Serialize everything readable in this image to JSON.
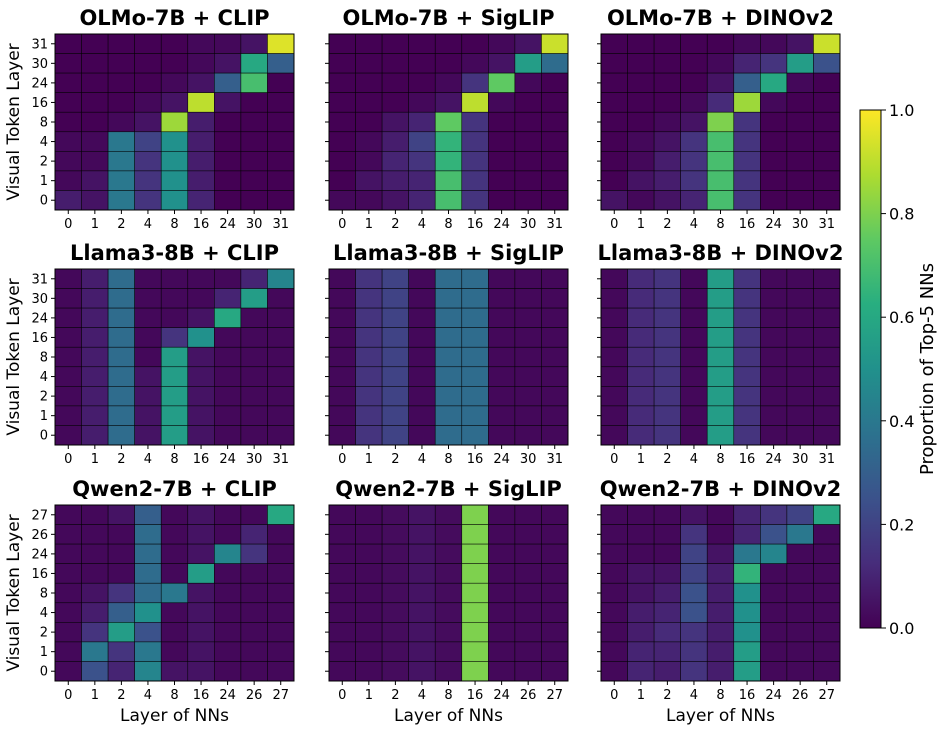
{
  "chart_data": [
    {
      "type": "heatmap",
      "title": "OLMo-7B + CLIP",
      "ylabel": "Visual Token Layer",
      "xlabel": "",
      "x_categories": [
        "0",
        "1",
        "2",
        "4",
        "8",
        "16",
        "24",
        "30",
        "31"
      ],
      "y_categories": [
        "31",
        "30",
        "24",
        "16",
        "8",
        "4",
        "2",
        "1",
        "0"
      ],
      "values": [
        [
          0.0,
          0.0,
          0.0,
          0.0,
          0.0,
          0.02,
          0.02,
          0.05,
          0.95
        ],
        [
          0.0,
          0.0,
          0.0,
          0.0,
          0.0,
          0.02,
          0.05,
          0.6,
          0.3
        ],
        [
          0.0,
          0.0,
          0.0,
          0.0,
          0.02,
          0.05,
          0.3,
          0.7,
          0.0
        ],
        [
          0.0,
          0.0,
          0.0,
          0.02,
          0.05,
          0.9,
          0.05,
          0.0,
          0.0
        ],
        [
          0.0,
          0.0,
          0.02,
          0.05,
          0.85,
          0.08,
          0.0,
          0.0,
          0.0
        ],
        [
          0.02,
          0.02,
          0.4,
          0.2,
          0.5,
          0.08,
          0.0,
          0.0,
          0.0
        ],
        [
          0.02,
          0.02,
          0.4,
          0.15,
          0.5,
          0.08,
          0.0,
          0.0,
          0.0
        ],
        [
          0.02,
          0.05,
          0.4,
          0.15,
          0.5,
          0.08,
          0.0,
          0.0,
          0.0
        ],
        [
          0.08,
          0.05,
          0.4,
          0.15,
          0.5,
          0.1,
          0.0,
          0.0,
          0.0
        ]
      ]
    },
    {
      "type": "heatmap",
      "title": "OLMo-7B + SigLIP",
      "ylabel": "",
      "xlabel": "",
      "x_categories": [
        "0",
        "1",
        "2",
        "4",
        "8",
        "16",
        "24",
        "30",
        "31"
      ],
      "y_categories": [
        "31",
        "30",
        "24",
        "16",
        "8",
        "4",
        "2",
        "1",
        "0"
      ],
      "values": [
        [
          0.0,
          0.0,
          0.0,
          0.0,
          0.0,
          0.0,
          0.02,
          0.05,
          0.92
        ],
        [
          0.0,
          0.0,
          0.0,
          0.0,
          0.0,
          0.02,
          0.05,
          0.55,
          0.35
        ],
        [
          0.0,
          0.0,
          0.0,
          0.0,
          0.02,
          0.15,
          0.75,
          0.02,
          0.0
        ],
        [
          0.0,
          0.0,
          0.0,
          0.02,
          0.05,
          0.9,
          0.02,
          0.0,
          0.0
        ],
        [
          0.0,
          0.0,
          0.05,
          0.1,
          0.75,
          0.15,
          0.0,
          0.0,
          0.0
        ],
        [
          0.0,
          0.02,
          0.08,
          0.2,
          0.65,
          0.15,
          0.0,
          0.0,
          0.0
        ],
        [
          0.0,
          0.02,
          0.1,
          0.15,
          0.65,
          0.15,
          0.0,
          0.0,
          0.0
        ],
        [
          0.0,
          0.05,
          0.08,
          0.1,
          0.7,
          0.15,
          0.0,
          0.0,
          0.0
        ],
        [
          0.02,
          0.02,
          0.05,
          0.1,
          0.7,
          0.15,
          0.0,
          0.0,
          0.0
        ]
      ]
    },
    {
      "type": "heatmap",
      "title": "OLMo-7B + DINOv2",
      "ylabel": "",
      "xlabel": "",
      "x_categories": [
        "0",
        "1",
        "2",
        "4",
        "8",
        "16",
        "24",
        "30",
        "31"
      ],
      "y_categories": [
        "31",
        "30",
        "24",
        "16",
        "8",
        "4",
        "2",
        "1",
        "0"
      ],
      "values": [
        [
          0.0,
          0.0,
          0.0,
          0.0,
          0.0,
          0.02,
          0.02,
          0.05,
          0.92
        ],
        [
          0.0,
          0.0,
          0.0,
          0.0,
          0.02,
          0.1,
          0.15,
          0.55,
          0.25
        ],
        [
          0.0,
          0.0,
          0.0,
          0.0,
          0.05,
          0.3,
          0.6,
          0.02,
          0.0
        ],
        [
          0.0,
          0.0,
          0.0,
          0.02,
          0.12,
          0.85,
          0.02,
          0.0,
          0.0
        ],
        [
          0.0,
          0.0,
          0.02,
          0.05,
          0.8,
          0.15,
          0.0,
          0.0,
          0.0
        ],
        [
          0.0,
          0.02,
          0.05,
          0.15,
          0.7,
          0.15,
          0.0,
          0.0,
          0.0
        ],
        [
          0.0,
          0.02,
          0.08,
          0.15,
          0.7,
          0.15,
          0.0,
          0.0,
          0.0
        ],
        [
          0.0,
          0.05,
          0.08,
          0.15,
          0.7,
          0.15,
          0.0,
          0.0,
          0.0
        ],
        [
          0.05,
          0.02,
          0.05,
          0.1,
          0.7,
          0.15,
          0.0,
          0.0,
          0.0
        ]
      ]
    },
    {
      "type": "heatmap",
      "title": "Llama3-8B + CLIP",
      "ylabel": "Visual Token Layer",
      "xlabel": "",
      "x_categories": [
        "0",
        "1",
        "2",
        "4",
        "8",
        "16",
        "24",
        "30",
        "31"
      ],
      "y_categories": [
        "31",
        "30",
        "24",
        "16",
        "8",
        "4",
        "2",
        "1",
        "0"
      ],
      "values": [
        [
          0.02,
          0.08,
          0.35,
          0.02,
          0.02,
          0.02,
          0.02,
          0.1,
          0.45
        ],
        [
          0.02,
          0.08,
          0.35,
          0.02,
          0.02,
          0.02,
          0.1,
          0.55,
          0.02
        ],
        [
          0.02,
          0.08,
          0.35,
          0.02,
          0.02,
          0.05,
          0.6,
          0.02,
          0.02
        ],
        [
          0.02,
          0.08,
          0.35,
          0.02,
          0.15,
          0.5,
          0.02,
          0.02,
          0.02
        ],
        [
          0.02,
          0.08,
          0.35,
          0.02,
          0.55,
          0.05,
          0.02,
          0.02,
          0.02
        ],
        [
          0.02,
          0.08,
          0.35,
          0.05,
          0.55,
          0.05,
          0.02,
          0.02,
          0.02
        ],
        [
          0.02,
          0.08,
          0.35,
          0.05,
          0.55,
          0.05,
          0.02,
          0.02,
          0.02
        ],
        [
          0.02,
          0.08,
          0.35,
          0.05,
          0.55,
          0.05,
          0.02,
          0.02,
          0.02
        ],
        [
          0.02,
          0.08,
          0.35,
          0.05,
          0.55,
          0.05,
          0.02,
          0.02,
          0.02
        ]
      ]
    },
    {
      "type": "heatmap",
      "title": "Llama3-8B + SigLIP",
      "ylabel": "",
      "xlabel": "",
      "x_categories": [
        "0",
        "1",
        "2",
        "4",
        "8",
        "16",
        "24",
        "30",
        "31"
      ],
      "y_categories": [
        "31",
        "30",
        "24",
        "16",
        "8",
        "4",
        "2",
        "1",
        "0"
      ],
      "values": [
        [
          0.02,
          0.15,
          0.2,
          0.02,
          0.35,
          0.35,
          0.02,
          0.02,
          0.02
        ],
        [
          0.02,
          0.15,
          0.2,
          0.02,
          0.35,
          0.35,
          0.02,
          0.02,
          0.02
        ],
        [
          0.02,
          0.15,
          0.2,
          0.02,
          0.35,
          0.35,
          0.02,
          0.02,
          0.02
        ],
        [
          0.02,
          0.15,
          0.2,
          0.02,
          0.35,
          0.35,
          0.02,
          0.02,
          0.02
        ],
        [
          0.02,
          0.15,
          0.2,
          0.02,
          0.35,
          0.35,
          0.02,
          0.02,
          0.02
        ],
        [
          0.02,
          0.15,
          0.2,
          0.02,
          0.35,
          0.35,
          0.02,
          0.02,
          0.02
        ],
        [
          0.02,
          0.15,
          0.2,
          0.02,
          0.35,
          0.35,
          0.02,
          0.02,
          0.02
        ],
        [
          0.02,
          0.15,
          0.2,
          0.02,
          0.35,
          0.35,
          0.02,
          0.02,
          0.02
        ],
        [
          0.02,
          0.15,
          0.2,
          0.02,
          0.35,
          0.35,
          0.02,
          0.02,
          0.02
        ]
      ]
    },
    {
      "type": "heatmap",
      "title": "Llama3-8B + DINOv2",
      "ylabel": "",
      "xlabel": "",
      "x_categories": [
        "0",
        "1",
        "2",
        "4",
        "8",
        "16",
        "24",
        "30",
        "31"
      ],
      "y_categories": [
        "31",
        "30",
        "24",
        "16",
        "8",
        "4",
        "2",
        "1",
        "0"
      ],
      "values": [
        [
          0.02,
          0.12,
          0.15,
          0.02,
          0.55,
          0.15,
          0.02,
          0.02,
          0.02
        ],
        [
          0.02,
          0.12,
          0.15,
          0.02,
          0.55,
          0.15,
          0.02,
          0.02,
          0.02
        ],
        [
          0.02,
          0.12,
          0.15,
          0.02,
          0.55,
          0.15,
          0.02,
          0.02,
          0.02
        ],
        [
          0.02,
          0.12,
          0.15,
          0.02,
          0.55,
          0.15,
          0.02,
          0.02,
          0.02
        ],
        [
          0.02,
          0.12,
          0.15,
          0.02,
          0.55,
          0.15,
          0.02,
          0.02,
          0.02
        ],
        [
          0.02,
          0.12,
          0.15,
          0.02,
          0.55,
          0.15,
          0.02,
          0.02,
          0.02
        ],
        [
          0.02,
          0.12,
          0.15,
          0.02,
          0.55,
          0.15,
          0.02,
          0.02,
          0.02
        ],
        [
          0.02,
          0.12,
          0.15,
          0.02,
          0.55,
          0.15,
          0.02,
          0.02,
          0.02
        ],
        [
          0.02,
          0.12,
          0.15,
          0.02,
          0.55,
          0.15,
          0.02,
          0.02,
          0.02
        ]
      ]
    },
    {
      "type": "heatmap",
      "title": "Qwen2-7B + CLIP",
      "ylabel": "Visual Token Layer",
      "xlabel": "Layer of NNs",
      "x_categories": [
        "0",
        "1",
        "2",
        "4",
        "8",
        "16",
        "24",
        "26",
        "27"
      ],
      "y_categories": [
        "27",
        "26",
        "24",
        "16",
        "8",
        "4",
        "2",
        "1",
        "0"
      ],
      "values": [
        [
          0.02,
          0.02,
          0.05,
          0.3,
          0.02,
          0.05,
          0.02,
          0.02,
          0.6
        ],
        [
          0.02,
          0.02,
          0.02,
          0.35,
          0.02,
          0.05,
          0.02,
          0.1,
          0.02
        ],
        [
          0.02,
          0.02,
          0.02,
          0.35,
          0.02,
          0.05,
          0.45,
          0.15,
          0.02
        ],
        [
          0.02,
          0.02,
          0.02,
          0.35,
          0.02,
          0.55,
          0.02,
          0.02,
          0.02
        ],
        [
          0.02,
          0.05,
          0.15,
          0.35,
          0.4,
          0.05,
          0.02,
          0.02,
          0.02
        ],
        [
          0.02,
          0.08,
          0.3,
          0.5,
          0.02,
          0.05,
          0.02,
          0.02,
          0.02
        ],
        [
          0.02,
          0.15,
          0.55,
          0.25,
          0.02,
          0.05,
          0.02,
          0.02,
          0.02
        ],
        [
          0.02,
          0.4,
          0.15,
          0.4,
          0.02,
          0.05,
          0.02,
          0.02,
          0.02
        ],
        [
          0.02,
          0.25,
          0.1,
          0.45,
          0.05,
          0.05,
          0.02,
          0.02,
          0.02
        ]
      ]
    },
    {
      "type": "heatmap",
      "title": "Qwen2-7B + SigLIP",
      "ylabel": "",
      "xlabel": "Layer of NNs",
      "x_categories": [
        "0",
        "1",
        "2",
        "4",
        "8",
        "16",
        "24",
        "26",
        "27"
      ],
      "y_categories": [
        "27",
        "26",
        "24",
        "16",
        "8",
        "4",
        "2",
        "1",
        "0"
      ],
      "values": [
        [
          0.02,
          0.02,
          0.03,
          0.05,
          0.03,
          0.8,
          0.02,
          0.02,
          0.02
        ],
        [
          0.02,
          0.02,
          0.03,
          0.05,
          0.03,
          0.8,
          0.02,
          0.02,
          0.02
        ],
        [
          0.02,
          0.02,
          0.03,
          0.05,
          0.03,
          0.8,
          0.02,
          0.02,
          0.02
        ],
        [
          0.02,
          0.02,
          0.03,
          0.05,
          0.03,
          0.8,
          0.02,
          0.02,
          0.02
        ],
        [
          0.02,
          0.02,
          0.03,
          0.05,
          0.03,
          0.8,
          0.02,
          0.02,
          0.02
        ],
        [
          0.02,
          0.02,
          0.03,
          0.05,
          0.03,
          0.8,
          0.02,
          0.02,
          0.02
        ],
        [
          0.02,
          0.02,
          0.03,
          0.05,
          0.03,
          0.8,
          0.02,
          0.02,
          0.02
        ],
        [
          0.02,
          0.02,
          0.03,
          0.05,
          0.03,
          0.8,
          0.02,
          0.02,
          0.02
        ],
        [
          0.02,
          0.02,
          0.03,
          0.05,
          0.03,
          0.8,
          0.02,
          0.02,
          0.02
        ]
      ]
    },
    {
      "type": "heatmap",
      "title": "Qwen2-7B + DINOv2",
      "ylabel": "",
      "xlabel": "Layer of NNs",
      "x_categories": [
        "0",
        "1",
        "2",
        "4",
        "8",
        "16",
        "24",
        "26",
        "27"
      ],
      "y_categories": [
        "27",
        "26",
        "24",
        "16",
        "8",
        "4",
        "2",
        "1",
        "0"
      ],
      "values": [
        [
          0.02,
          0.02,
          0.02,
          0.05,
          0.02,
          0.1,
          0.15,
          0.2,
          0.6
        ],
        [
          0.02,
          0.02,
          0.02,
          0.15,
          0.02,
          0.1,
          0.25,
          0.4,
          0.02
        ],
        [
          0.02,
          0.02,
          0.02,
          0.2,
          0.05,
          0.4,
          0.45,
          0.02,
          0.02
        ],
        [
          0.02,
          0.05,
          0.05,
          0.2,
          0.08,
          0.65,
          0.02,
          0.02,
          0.02
        ],
        [
          0.02,
          0.05,
          0.08,
          0.25,
          0.08,
          0.5,
          0.02,
          0.02,
          0.02
        ],
        [
          0.02,
          0.08,
          0.1,
          0.25,
          0.08,
          0.5,
          0.02,
          0.02,
          0.02
        ],
        [
          0.02,
          0.08,
          0.12,
          0.15,
          0.08,
          0.5,
          0.02,
          0.02,
          0.02
        ],
        [
          0.02,
          0.1,
          0.1,
          0.15,
          0.08,
          0.55,
          0.02,
          0.02,
          0.02
        ],
        [
          0.02,
          0.1,
          0.08,
          0.15,
          0.08,
          0.55,
          0.02,
          0.02,
          0.02
        ]
      ]
    }
  ],
  "colorbar": {
    "label": "Proportion of Top-5 NNs",
    "range": [
      0.0,
      1.0
    ],
    "ticks": [
      "0.0",
      "0.2",
      "0.4",
      "0.6",
      "0.8",
      "1.0"
    ],
    "colormap": "viridis"
  }
}
